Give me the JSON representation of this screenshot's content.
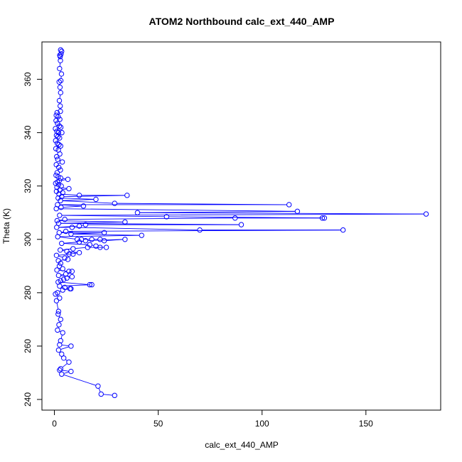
{
  "chart_data": {
    "type": "line",
    "title": "ATOM2 Northbound calc_ext_440_AMP",
    "xlabel": "calc_ext_440_AMP",
    "ylabel": "Theta (K)",
    "xlim": [
      -6,
      186
    ],
    "ylim": [
      236,
      374
    ],
    "x_ticks": [
      0,
      50,
      100,
      150
    ],
    "y_ticks": [
      240,
      260,
      280,
      300,
      320,
      340,
      360
    ],
    "marker": "open-circle",
    "grid": false,
    "series_color": "#0000ff",
    "series": [
      {
        "name": "ATOM2 Northbound",
        "points": [
          [
            3.0,
            371.0
          ],
          [
            3.2,
            369.5
          ],
          [
            2.8,
            368.5
          ],
          [
            3.5,
            370.5
          ],
          [
            2.6,
            369.0
          ],
          [
            2.9,
            367.0
          ],
          [
            2.5,
            364.0
          ],
          [
            3.4,
            362.0
          ],
          [
            3.1,
            359.5
          ],
          [
            2.3,
            359.0
          ],
          [
            2.7,
            357.0
          ],
          [
            3.0,
            355.0
          ],
          [
            2.4,
            352.0
          ],
          [
            2.8,
            350.0
          ],
          [
            2.9,
            348.0
          ],
          [
            1.3,
            347.5
          ],
          [
            0.9,
            346.5
          ],
          [
            1.8,
            346.0
          ],
          [
            2.6,
            345.0
          ],
          [
            0.8,
            344.5
          ],
          [
            1.5,
            343.5
          ],
          [
            2.4,
            342.5
          ],
          [
            3.1,
            342.0
          ],
          [
            0.5,
            341.5
          ],
          [
            1.2,
            340.5
          ],
          [
            2.0,
            340.0
          ],
          [
            3.6,
            340.0
          ],
          [
            1.0,
            339.0
          ],
          [
            1.7,
            338.5
          ],
          [
            2.5,
            338.0
          ],
          [
            0.6,
            337.0
          ],
          [
            1.4,
            336.0
          ],
          [
            2.2,
            335.5
          ],
          [
            3.0,
            335.0
          ],
          [
            0.7,
            334.0
          ],
          [
            1.9,
            333.5
          ],
          [
            2.6,
            332.0
          ],
          [
            1.1,
            331.0
          ],
          [
            1.6,
            330.0
          ],
          [
            3.8,
            329.0
          ],
          [
            0.9,
            328.0
          ],
          [
            2.1,
            327.0
          ],
          [
            2.9,
            326.0
          ],
          [
            1.3,
            325.0
          ],
          [
            0.8,
            324.0
          ],
          [
            1.8,
            323.5
          ],
          [
            3.0,
            323.0
          ],
          [
            6.5,
            322.5
          ],
          [
            2.4,
            322.0
          ],
          [
            1.5,
            321.5
          ],
          [
            0.6,
            321.0
          ],
          [
            2.0,
            320.5
          ],
          [
            3.3,
            320.0
          ],
          [
            1.2,
            319.5
          ],
          [
            7.0,
            319.0
          ],
          [
            2.6,
            318.5
          ],
          [
            1.0,
            318.0
          ],
          [
            4.0,
            317.5
          ],
          [
            2.2,
            317.0
          ],
          [
            12.0,
            316.5
          ],
          [
            35.0,
            316.5
          ],
          [
            3.5,
            316.0
          ],
          [
            1.8,
            315.5
          ],
          [
            20.0,
            315.0
          ],
          [
            2.9,
            314.5
          ],
          [
            29.0,
            313.5
          ],
          [
            113.0,
            313.0
          ],
          [
            1.5,
            313.0
          ],
          [
            14.0,
            312.5
          ],
          [
            3.2,
            312.0
          ],
          [
            0.9,
            311.5
          ],
          [
            117.0,
            310.5
          ],
          [
            40.0,
            310.0
          ],
          [
            179.0,
            309.5
          ],
          [
            2.5,
            309.0
          ],
          [
            54.0,
            308.5
          ],
          [
            129.0,
            308.0
          ],
          [
            130.0,
            308.0
          ],
          [
            87.0,
            308.0
          ],
          [
            5.0,
            307.5
          ],
          [
            1.3,
            307.0
          ],
          [
            34.0,
            306.5
          ],
          [
            2.0,
            306.0
          ],
          [
            90.0,
            305.5
          ],
          [
            15.0,
            305.5
          ],
          [
            12.0,
            305.0
          ],
          [
            1.1,
            304.5
          ],
          [
            8.5,
            304.5
          ],
          [
            70.0,
            303.5
          ],
          [
            139.0,
            303.5
          ],
          [
            5.5,
            303.0
          ],
          [
            2.3,
            302.5
          ],
          [
            24.0,
            302.5
          ],
          [
            8.0,
            302.0
          ],
          [
            42.0,
            301.5
          ],
          [
            1.6,
            301.0
          ],
          [
            11.0,
            300.0
          ],
          [
            13.0,
            300.0
          ],
          [
            18.0,
            300.0
          ],
          [
            22.0,
            300.0
          ],
          [
            24.0,
            299.5
          ],
          [
            34.0,
            300.0
          ],
          [
            15.0,
            299.5
          ],
          [
            12.0,
            299.0
          ],
          [
            3.5,
            298.5
          ],
          [
            17.0,
            298.0
          ],
          [
            20.0,
            297.5
          ],
          [
            22.0,
            297.0
          ],
          [
            25.0,
            297.0
          ],
          [
            16.0,
            297.0
          ],
          [
            9.0,
            296.5
          ],
          [
            2.8,
            296.0
          ],
          [
            6.0,
            295.5
          ],
          [
            12.0,
            295.0
          ],
          [
            7.0,
            294.5
          ],
          [
            9.0,
            294.5
          ],
          [
            1.0,
            294.0
          ],
          [
            5.0,
            293.0
          ],
          [
            6.5,
            292.5
          ],
          [
            1.9,
            292.0
          ],
          [
            3.0,
            291.0
          ],
          [
            2.4,
            290.0
          ],
          [
            4.0,
            289.0
          ],
          [
            1.2,
            288.5
          ],
          [
            7.0,
            288.0
          ],
          [
            8.5,
            288.0
          ],
          [
            5.5,
            287.0
          ],
          [
            2.0,
            286.5
          ],
          [
            8.5,
            286.0
          ],
          [
            6.0,
            285.5
          ],
          [
            4.5,
            285.0
          ],
          [
            3.0,
            284.5
          ],
          [
            1.8,
            284.0
          ],
          [
            17.0,
            283.0
          ],
          [
            18.0,
            283.0
          ],
          [
            2.5,
            282.5
          ],
          [
            5.0,
            282.0
          ],
          [
            7.5,
            281.5
          ],
          [
            8.0,
            281.5
          ],
          [
            4.0,
            281.0
          ],
          [
            1.5,
            280.0
          ],
          [
            0.5,
            279.5
          ],
          [
            2.5,
            278.0
          ],
          [
            1.0,
            277.0
          ],
          [
            2.0,
            273.0
          ],
          [
            1.8,
            272.0
          ],
          [
            3.0,
            270.0
          ],
          [
            2.2,
            268.0
          ],
          [
            1.5,
            266.0
          ],
          [
            4.0,
            265.0
          ],
          [
            3.0,
            262.0
          ],
          [
            2.5,
            260.5
          ],
          [
            8.0,
            260.0
          ],
          [
            2.0,
            258.5
          ],
          [
            3.5,
            257.0
          ],
          [
            4.5,
            255.5
          ],
          [
            7.0,
            254.0
          ],
          [
            3.0,
            251.5
          ],
          [
            2.5,
            251.0
          ],
          [
            8.0,
            250.5
          ],
          [
            3.5,
            249.5
          ],
          [
            21.0,
            245.0
          ],
          [
            22.5,
            242.0
          ],
          [
            29.0,
            241.5
          ]
        ]
      }
    ]
  }
}
